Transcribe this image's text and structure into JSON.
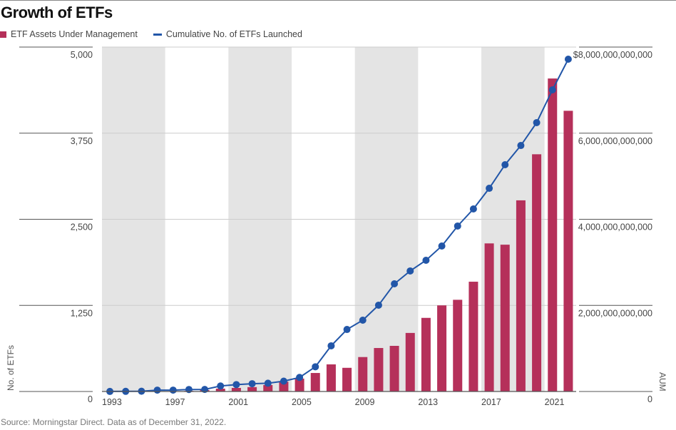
{
  "title": "Growth of ETFs",
  "source": "Source: Morningstar Direct.  Data as of December 31, 2022.",
  "colors": {
    "bars": "#b5305a",
    "line": "#2256a8",
    "shade": "#e4e4e4",
    "grid": "#cccccc"
  },
  "chart_data": {
    "type": "bar+line",
    "title": "Growth of ETFs",
    "legend_placement": "top-left",
    "grid": true,
    "x": [
      1993,
      1994,
      1995,
      1996,
      1997,
      1998,
      1999,
      2000,
      2001,
      2002,
      2003,
      2004,
      2005,
      2006,
      2007,
      2008,
      2009,
      2010,
      2011,
      2012,
      2013,
      2014,
      2015,
      2016,
      2017,
      2018,
      2019,
      2020,
      2021,
      2022
    ],
    "x_tick_labels": [
      "1993",
      "1997",
      "2001",
      "2005",
      "2009",
      "2013",
      "2017",
      "2021"
    ],
    "shaded_ranges": [
      [
        1993,
        1996
      ],
      [
        2001,
        2004
      ],
      [
        2009,
        2012
      ],
      [
        2017,
        2020
      ]
    ],
    "series": [
      {
        "name": "ETF Assets Under Management",
        "type": "bar",
        "axis": "right",
        "values": [
          0,
          0,
          1000000000.0,
          2000000000.0,
          6000000000.0,
          15000000000.0,
          34000000000.0,
          66000000000.0,
          83000000000.0,
          102000000000.0,
          151000000000.0,
          228000000000.0,
          300000000000.0,
          430000000000.0,
          630000000000.0,
          550000000000.0,
          800000000000.0,
          1010000000000.0,
          1060000000000.0,
          1360000000000.0,
          1710000000000.0,
          2000000000000.0,
          2130000000000.0,
          2550000000000.0,
          3440000000000.0,
          3410000000000.0,
          4440000000000.0,
          5510000000000.0,
          7270000000000.0,
          6520000000000.0
        ]
      },
      {
        "name": "Cumulative No. of ETFs Launched",
        "type": "line",
        "axis": "left",
        "values": [
          1,
          2,
          4,
          20,
          20,
          29,
          30,
          80,
          100,
          113,
          120,
          150,
          204,
          359,
          663,
          900,
          1035,
          1253,
          1563,
          1750,
          1905,
          2112,
          2402,
          2650,
          2950,
          3292,
          3571,
          3903,
          4379,
          4824
        ]
      }
    ],
    "y_left": {
      "label": "No. of ETFs",
      "range": [
        0,
        5000
      ],
      "tick_labels": [
        "0",
        "1,250",
        "2,500",
        "3,750",
        "5,000"
      ],
      "ticks": [
        0,
        1250,
        2500,
        3750,
        5000
      ]
    },
    "y_right": {
      "label": "AUM",
      "range": [
        0,
        8000000000000
      ],
      "tick_labels": [
        "0",
        "2,000,000,000,000",
        "4,000,000,000,000",
        "6,000,000,000,000",
        "$8,000,000,000,000"
      ],
      "ticks": [
        0,
        2000000000000,
        4000000000000,
        6000000000000,
        8000000000000
      ]
    }
  }
}
